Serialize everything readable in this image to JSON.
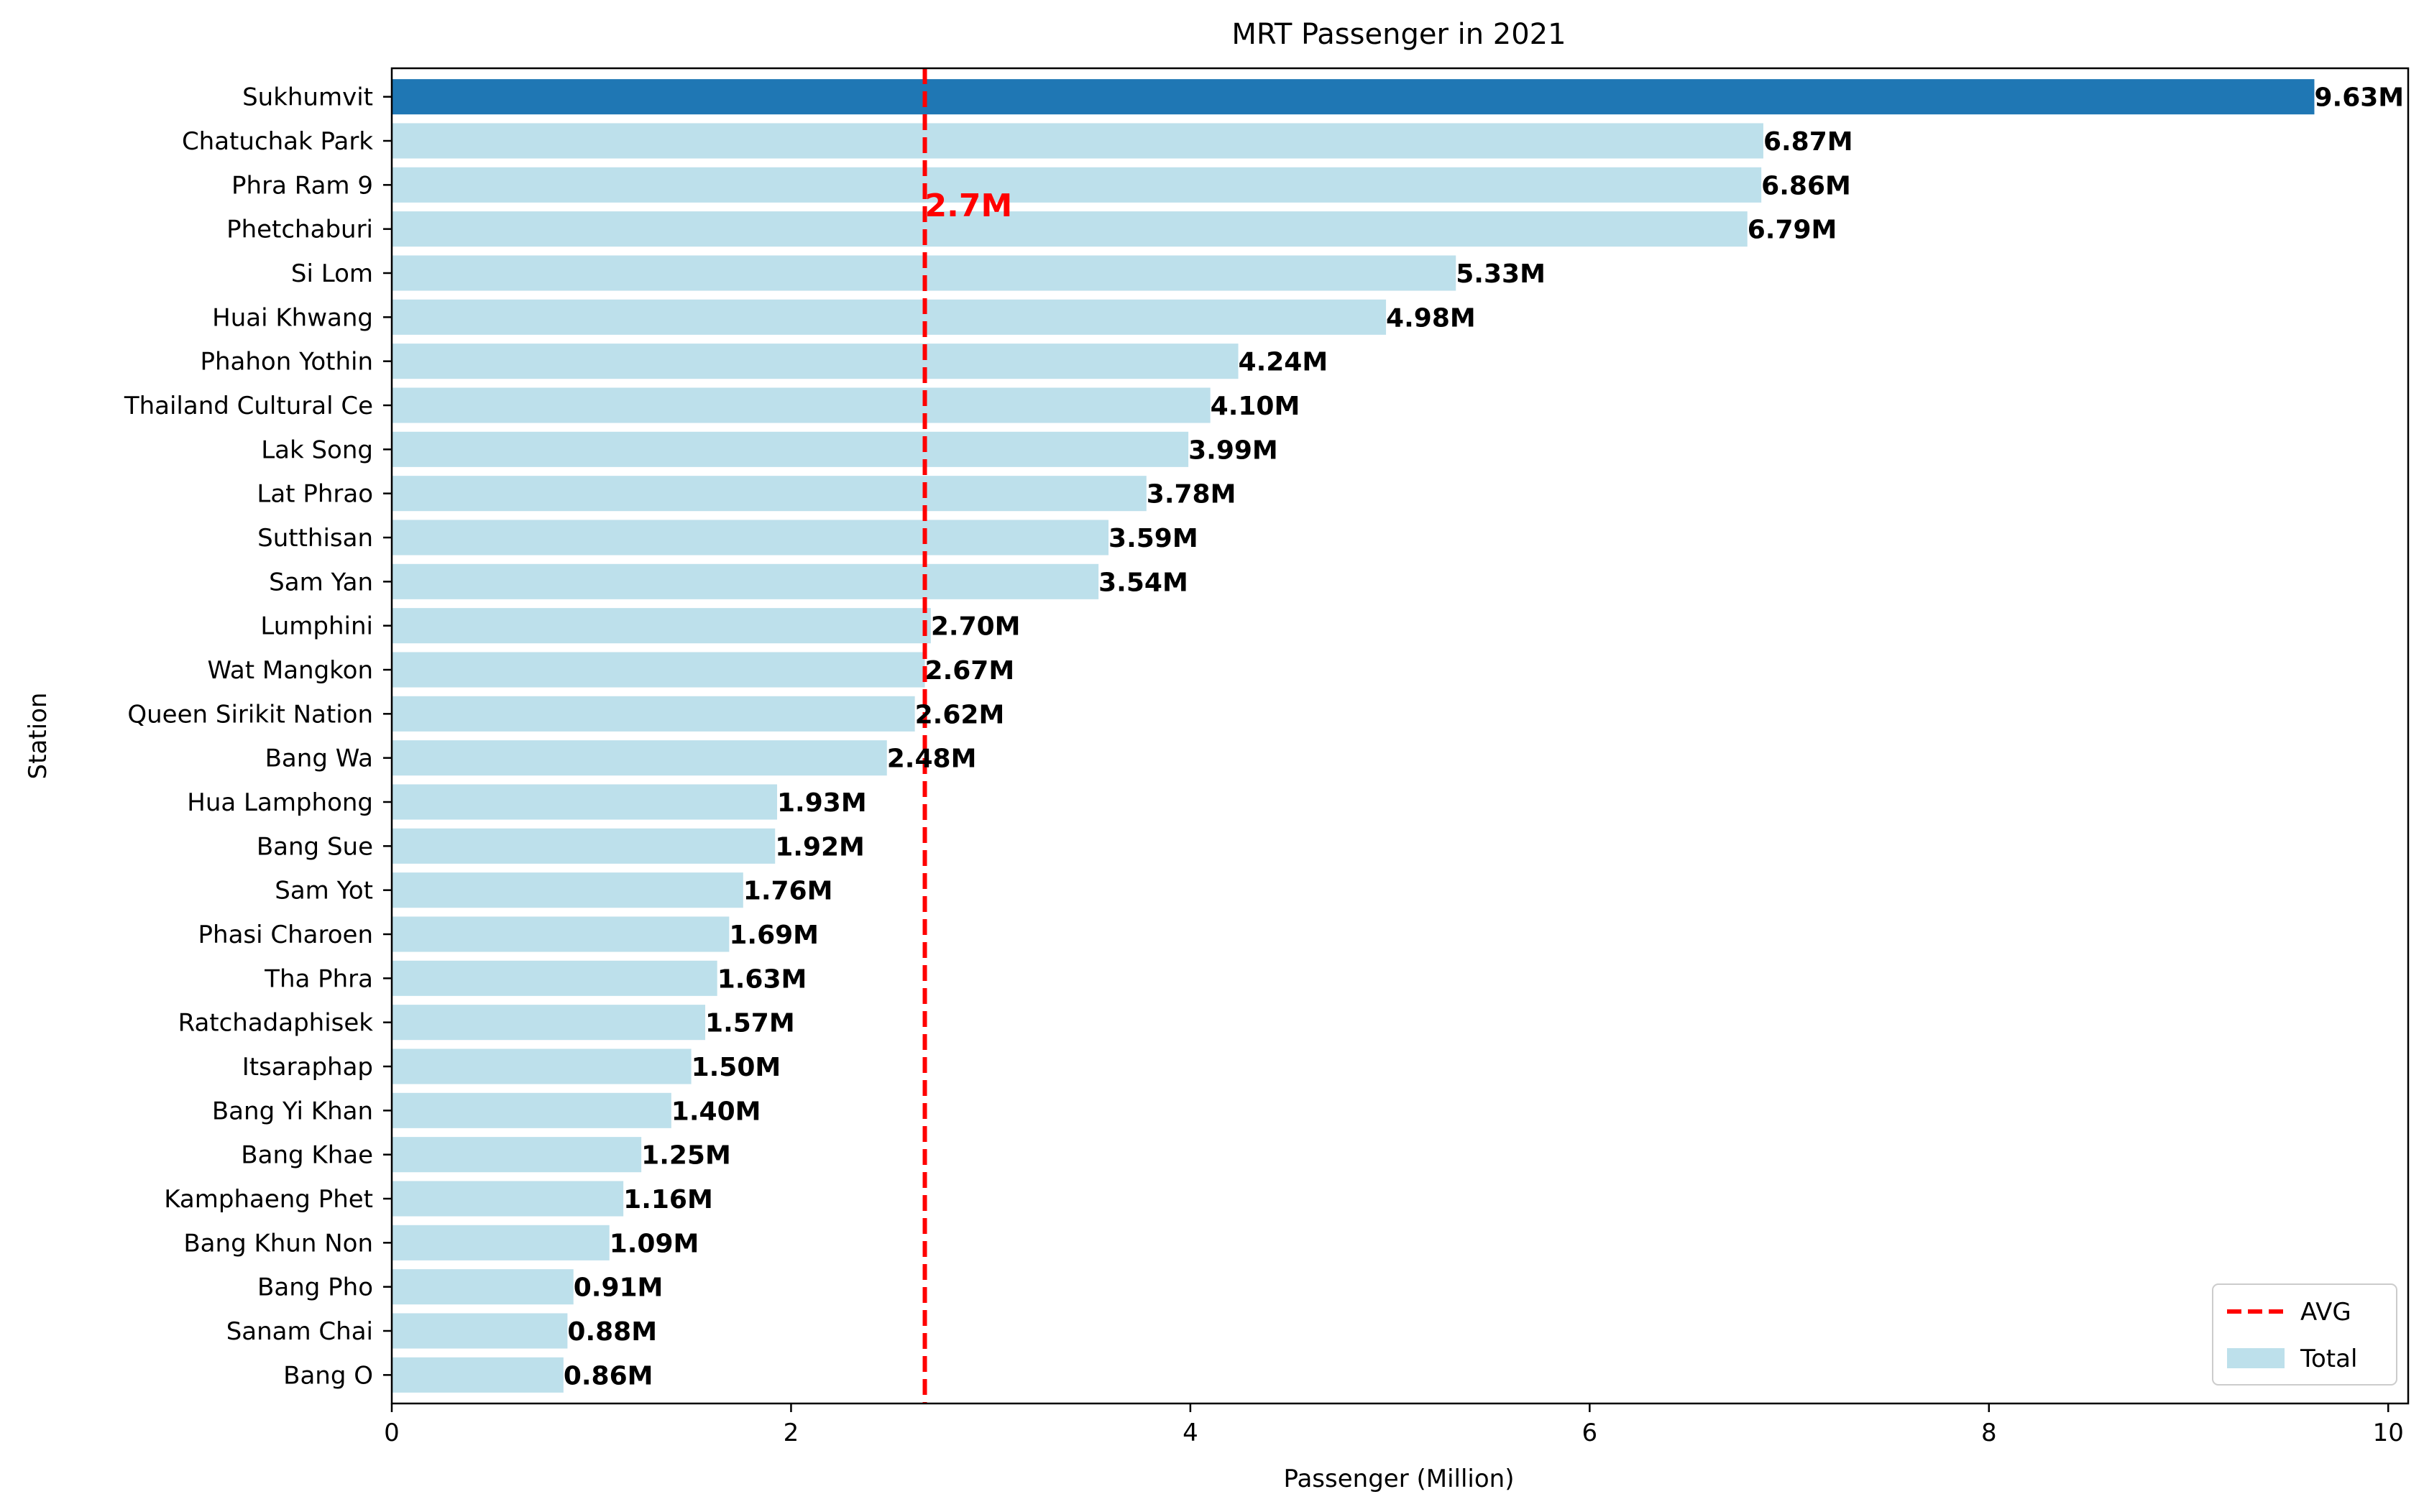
{
  "chart_data": {
    "type": "bar",
    "orientation": "horizontal",
    "title": "MRT Passenger in 2021",
    "xlabel": "Passenger (Million)",
    "ylabel": "Station",
    "xlim": [
      0,
      10.1
    ],
    "xticks": [
      0,
      2,
      4,
      6,
      8,
      10
    ],
    "xtick_labels": [
      "0",
      "2",
      "4",
      "6",
      "8",
      "10"
    ],
    "grid": false,
    "legend_position": "lower-right",
    "categories": [
      "Sukhumvit",
      "Chatuchak Park",
      "Phra Ram 9",
      "Phetchaburi",
      "Si Lom",
      "Huai Khwang",
      "Phahon Yothin",
      "Thailand Cultural Ce",
      "Lak Song",
      "Lat Phrao",
      "Sutthisan",
      "Sam Yan",
      "Lumphini",
      "Wat Mangkon",
      "Queen Sirikit Nation",
      "Bang Wa",
      "Hua Lamphong",
      "Bang Sue",
      "Sam Yot",
      "Phasi Charoen",
      "Tha Phra",
      "Ratchadaphisek",
      "Itsaraphap",
      "Bang Yi Khan",
      "Bang Khae",
      "Kamphaeng Phet ",
      "Bang Khun Non",
      "Bang Pho",
      "Sanam Chai",
      "Bang O"
    ],
    "series": [
      {
        "name": "Total",
        "values": [
          9.63,
          6.87,
          6.86,
          6.79,
          5.33,
          4.98,
          4.24,
          4.1,
          3.99,
          3.78,
          3.59,
          3.54,
          2.7,
          2.67,
          2.62,
          2.48,
          1.93,
          1.92,
          1.76,
          1.69,
          1.63,
          1.57,
          1.5,
          1.4,
          1.25,
          1.16,
          1.09,
          0.91,
          0.88,
          0.86
        ],
        "color": "#add8e6",
        "highlight_index": 0,
        "highlight_color": "#1f77b4"
      }
    ],
    "data_labels": [
      "9.63M",
      "6.87M",
      "6.86M",
      "6.79M",
      "5.33M",
      "4.98M",
      "4.24M",
      "4.10M",
      "3.99M",
      "3.78M",
      "3.59M",
      "3.54M",
      "2.70M",
      "2.67M",
      "2.62M",
      "2.48M",
      "1.93M",
      "1.92M",
      "1.76M",
      "1.69M",
      "1.63M",
      "1.57M",
      "1.50M",
      "1.40M",
      "1.25M",
      "1.16M",
      "1.09M",
      "0.91M",
      "0.88M",
      "0.86M"
    ],
    "reference_line": {
      "name": "AVG",
      "value": 2.67,
      "label": "2.7M",
      "color": "#ff0000",
      "style": "dashed"
    },
    "legend": [
      {
        "label": "AVG",
        "kind": "line",
        "color": "#ff0000"
      },
      {
        "label": "Total",
        "kind": "patch",
        "color": "#add8e6"
      }
    ]
  }
}
